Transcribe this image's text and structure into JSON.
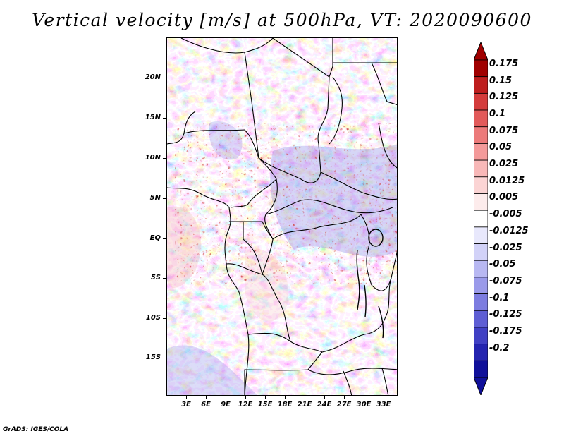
{
  "title": "Vertical velocity [m/s] at 500hPa, VT: 2020090600",
  "footer": "GrADS: IGES/COLA",
  "map": {
    "lat_labels": [
      "20N",
      "15N",
      "10N",
      "5N",
      "EQ",
      "5S",
      "10S",
      "15S"
    ],
    "lon_labels": [
      "3E",
      "6E",
      "9E",
      "12E",
      "15E",
      "18E",
      "21E",
      "24E",
      "27E",
      "30E",
      "33E"
    ]
  },
  "colorbar": {
    "labels": [
      "0.175",
      "0.15",
      "0.125",
      "0.1",
      "0.075",
      "0.05",
      "0.025",
      "0.0125",
      "0.005",
      "-0.005",
      "-0.0125",
      "-0.025",
      "-0.05",
      "-0.075",
      "-0.1",
      "-0.125",
      "-0.175",
      "-0.2"
    ],
    "colors": [
      "#a00000",
      "#be1e1e",
      "#d43c3c",
      "#e25a5a",
      "#ec7a7a",
      "#f49a9a",
      "#f8b8b8",
      "#fbd4d4",
      "#fdecec",
      "#ffffff",
      "#e8e8fc",
      "#d2d2f8",
      "#b8b8f2",
      "#9a9aea",
      "#7c7ce0",
      "#5e5ed4",
      "#4040c4",
      "#2424b0",
      "#10109a"
    ],
    "tip_top_color": "#a00000",
    "tip_bottom_color": "#10109a"
  },
  "colors": {
    "positive": "#e07070",
    "negative": "#7070e0",
    "background": "#ffffff"
  }
}
